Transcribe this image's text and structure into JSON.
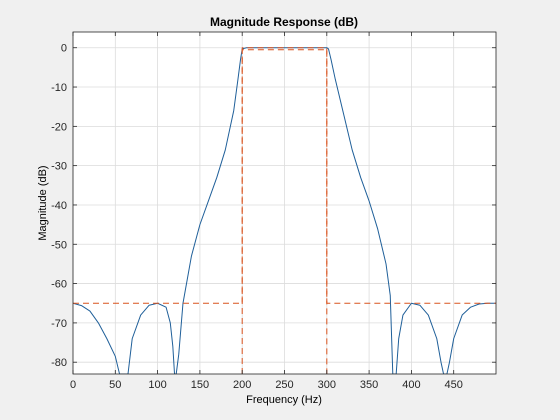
{
  "chart_data": {
    "type": "line",
    "title": "Magnitude Response (dB)",
    "xlabel": "Frequency (Hz)",
    "ylabel": "Magnitude (dB)",
    "xlim": [
      0,
      500
    ],
    "ylim": [
      -83,
      4
    ],
    "x_ticks": [
      0,
      50,
      100,
      150,
      200,
      250,
      300,
      350,
      400,
      450
    ],
    "x_tick_labels": [
      "0",
      "50",
      "100",
      "150",
      "200",
      "250",
      "300",
      "350",
      "400",
      "450"
    ],
    "y_ticks": [
      0,
      -10,
      -20,
      -30,
      -40,
      -50,
      -60,
      -70,
      -80
    ],
    "y_tick_labels": [
      "0",
      "-10",
      "-20",
      "-30",
      "-40",
      "-50",
      "-60",
      "-70",
      "-80"
    ],
    "grid": true,
    "legend": null,
    "series": [
      {
        "color": "#1f5f99",
        "style": "solid",
        "x": [
          0,
          10,
          20,
          30,
          40,
          50,
          55,
          58,
          60,
          62,
          65,
          70,
          80,
          90,
          100,
          110,
          115,
          118,
          120,
          122,
          125,
          130,
          140,
          150,
          160,
          170,
          180,
          190,
          195,
          198,
          200,
          205,
          250,
          295,
          300,
          302,
          305,
          310,
          320,
          330,
          340,
          350,
          360,
          370,
          375,
          378,
          380,
          382,
          385,
          390,
          400,
          410,
          420,
          430,
          435,
          438,
          440,
          442,
          445,
          450,
          460,
          470,
          480,
          490,
          500
        ],
        "y": [
          -65,
          -65.6,
          -67,
          -70,
          -74,
          -78.5,
          -83,
          -83,
          -83,
          -83,
          -83,
          -74,
          -68,
          -65.5,
          -65,
          -66,
          -70,
          -76,
          -83,
          -83,
          -78,
          -65,
          -53,
          -45,
          -39,
          -33,
          -26,
          -16,
          -8,
          -3,
          -0.3,
          0,
          0,
          0,
          0,
          -0.3,
          -3,
          -8,
          -17,
          -26,
          -33,
          -39,
          -46,
          -55,
          -63,
          -83,
          -83,
          -83,
          -74,
          -68,
          -65,
          -65.5,
          -68,
          -74,
          -80,
          -83,
          -83,
          -83,
          -80,
          -74,
          -68,
          -66,
          -65.2,
          -65,
          -65
        ]
      },
      {
        "color": "#d9531e",
        "style": "dashed",
        "x": [
          0,
          200,
          200,
          300,
          300
        ],
        "y": [
          -65,
          -65,
          0,
          0,
          -83
        ]
      },
      {
        "color": "#d9531e",
        "style": "dashed",
        "x": [
          200,
          200,
          300,
          300,
          300,
          500
        ],
        "y": [
          -83,
          -0.5,
          -0.5,
          -0.5,
          -65,
          -65
        ]
      }
    ]
  }
}
